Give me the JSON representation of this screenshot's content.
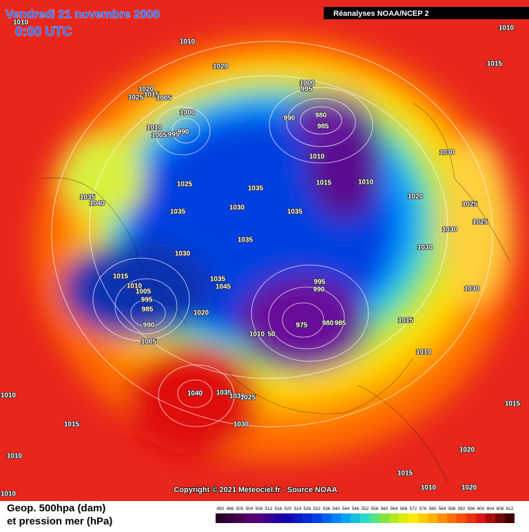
{
  "header": {
    "date": "Vendredi 21 novembre 2008",
    "time": "0:00 UTC",
    "source": "Réanalyses NOAA/NCEP 2"
  },
  "copyright": "Copyright © 2021 Meteociel.fr - Source NOAA",
  "legend": {
    "line1": "Geop. 500hpa (dam)",
    "line2": "et pression mer (hPa)",
    "scale": [
      492,
      496,
      500,
      504,
      508,
      512,
      516,
      520,
      524,
      528,
      532,
      536,
      540,
      544,
      548,
      552,
      556,
      560,
      564,
      568,
      572,
      576,
      580,
      584,
      588,
      592,
      596,
      600,
      604,
      608,
      612
    ]
  },
  "isobar_labels": [
    "1010",
    "1015",
    "1010",
    "1020",
    "1010",
    "1020",
    "1015",
    "1025",
    "1005",
    "1000",
    "1010",
    "1005",
    "995",
    "990",
    "1000",
    "995",
    "980",
    "985",
    "990",
    "1010",
    "1015",
    "1010",
    "1025",
    "1035",
    "1030",
    "1020",
    "1025",
    "1030",
    "1025",
    "1035",
    "1040",
    "1035",
    "1030",
    "1035",
    "1035",
    "1030",
    "1030",
    "1015",
    "1010",
    "1005",
    "995",
    "985",
    "990",
    "1005",
    "1035",
    "1045",
    "995",
    "990",
    "1020",
    "1010",
    "50",
    "975",
    "980",
    "985",
    "1030",
    "1015",
    "1010",
    "1040",
    "1035",
    "1030",
    "1025",
    "1010",
    "1015",
    "1030",
    "1015",
    "1020",
    "1010",
    "1015",
    "1010",
    "1020",
    "1010"
  ]
}
